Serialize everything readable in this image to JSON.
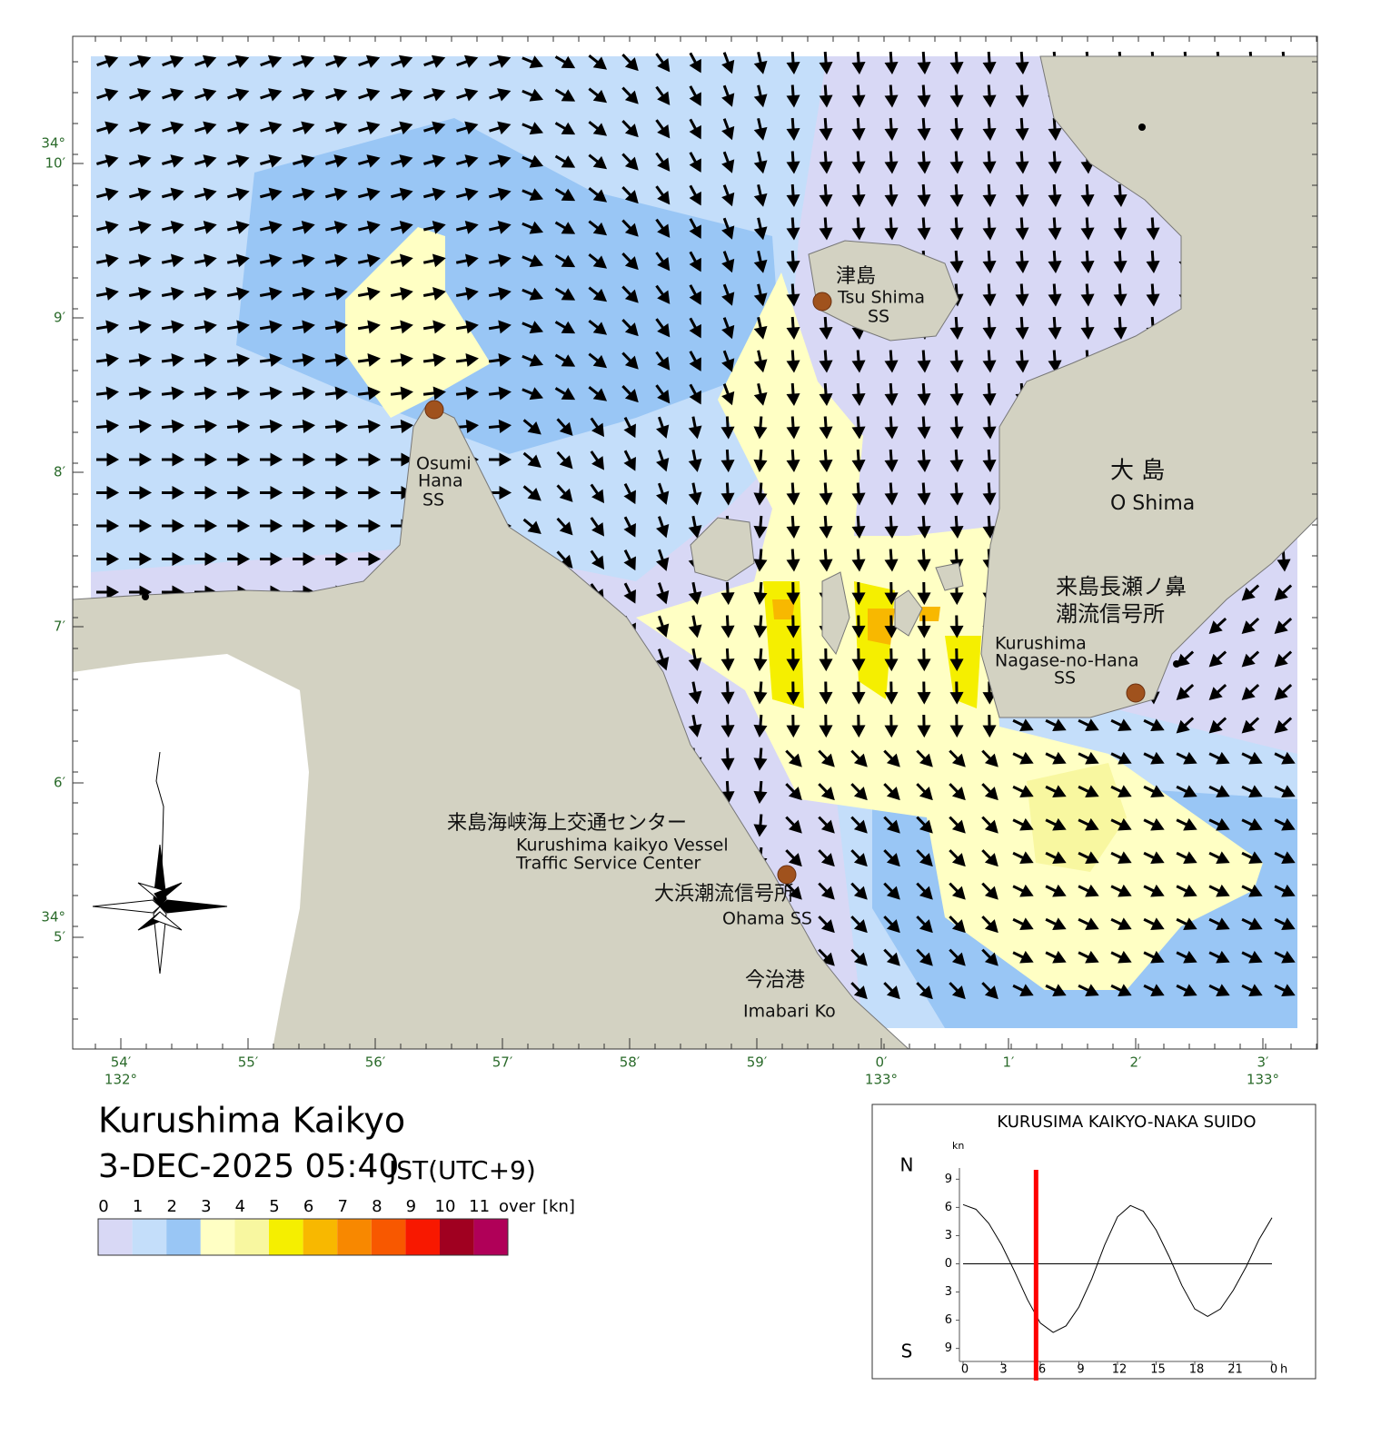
{
  "title": "Kurushima Kaikyo",
  "datetime": "3-DEC-2025 05:40",
  "timezone": "JST(UTC+9)",
  "legend": {
    "labels": [
      "0",
      "1",
      "2",
      "3",
      "4",
      "5",
      "6",
      "7",
      "8",
      "9",
      "10",
      "11"
    ],
    "over": "over",
    "unit": "[kn]",
    "colors": [
      "#d8d8f5",
      "#c4defa",
      "#99c6f5",
      "#ffffc4",
      "#f8f7a0",
      "#f5ef00",
      "#f8b800",
      "#f88800",
      "#f85800",
      "#f81800",
      "#a00020",
      "#b00058"
    ]
  },
  "map": {
    "lon_ticks": [
      {
        "label": "54′",
        "degree": "132°"
      },
      {
        "label": "55′"
      },
      {
        "label": "56′"
      },
      {
        "label": "57′"
      },
      {
        "label": "58′"
      },
      {
        "label": "59′"
      },
      {
        "label": "0′",
        "degree": "133°"
      },
      {
        "label": "1′"
      },
      {
        "label": "2′"
      },
      {
        "label": "3′",
        "degree": "133°"
      }
    ],
    "lat_ticks": [
      {
        "label": "10′",
        "degree": "34°"
      },
      {
        "label": "9′"
      },
      {
        "label": "8′"
      },
      {
        "label": "7′"
      },
      {
        "label": "6′"
      },
      {
        "label": "5′",
        "degree": "34°"
      }
    ],
    "places": [
      [
        "津島",
        "Tsu Shima",
        "SS"
      ],
      [
        "Osumi",
        "Hana",
        "SS"
      ],
      [
        "大 島",
        "O Shima"
      ],
      [
        "来島長瀬ノ鼻",
        "潮流信号所",
        "Kurushima",
        "Nagase-no-Hana",
        "SS"
      ],
      [
        "来島海峡海上交通センター",
        "Kurushima kaikyo Vessel",
        "Traffic Service Center"
      ],
      [
        "大浜潮流信号所",
        "Ohama SS"
      ],
      [
        "今治港",
        "Imabari Ko"
      ]
    ]
  },
  "inset_chart": {
    "type": "line",
    "title": "KURUSIMA KAIKYO-NAKA SUIDO",
    "y_unit": "kn",
    "north": "N",
    "south": "S",
    "x_unit": "h",
    "x": [
      0,
      1,
      2,
      3,
      4,
      5,
      6,
      7,
      8,
      9,
      10,
      11,
      12,
      13,
      14,
      15,
      16,
      17,
      18,
      19,
      20,
      21,
      22,
      23,
      24
    ],
    "series": [
      {
        "color": "#000000",
        "values": [
          6.3,
          5.8,
          4.3,
          2.0,
          -0.8,
          -3.8,
          -6.3,
          -7.3,
          -6.6,
          -4.6,
          -1.6,
          2.0,
          5.0,
          6.2,
          5.6,
          3.6,
          0.8,
          -2.3,
          -4.8,
          -5.6,
          -4.8,
          -2.8,
          -0.3,
          2.6,
          4.9
        ]
      }
    ],
    "xlim": [
      0,
      24
    ],
    "ylim": [
      -10,
      10
    ],
    "xticks": [
      0,
      3,
      6,
      9,
      12,
      15,
      18,
      21,
      {
        "value": 24,
        "label": "0"
      }
    ],
    "yticks": [
      {
        "value": 9,
        "label": "9"
      },
      {
        "value": 6,
        "label": "6"
      },
      {
        "value": 3,
        "label": "3"
      },
      0,
      {
        "value": -3,
        "label": "3"
      },
      {
        "value": -6,
        "label": "6"
      },
      {
        "value": -9,
        "label": "9"
      }
    ],
    "marker_x": 5.67,
    "marker_color": "#ff0000"
  }
}
